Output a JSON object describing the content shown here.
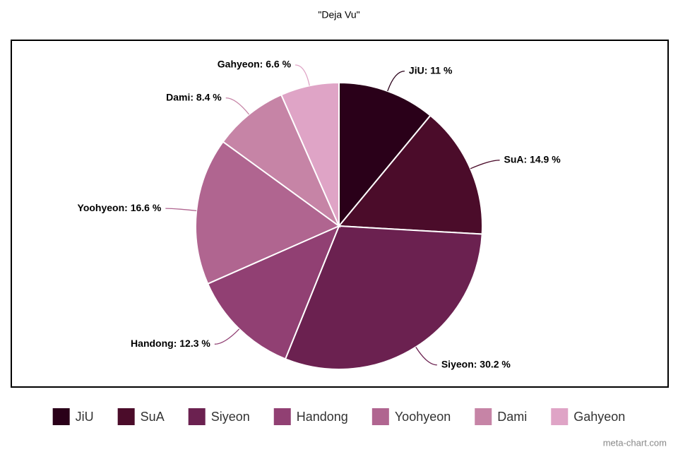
{
  "chart_data": {
    "type": "pie",
    "title": "\"Deja Vu\"",
    "categories": [
      "JiU",
      "SuA",
      "Siyeon",
      "Handong",
      "Yoohyeon",
      "Dami",
      "Gahyeon"
    ],
    "values": [
      11,
      14.9,
      30.2,
      12.3,
      16.6,
      8.4,
      6.6
    ],
    "value_labels": [
      "JiU: 11 %",
      "SuA: 14.9 %",
      "Siyeon: 30.2 %",
      "Handong: 12.3 %",
      "Yoohyeon: 16.6 %",
      "Dami: 8.4 %",
      "Gahyeon: 6.6 %"
    ],
    "colors": [
      "#2a0019",
      "#4b0c2a",
      "#6b2150",
      "#914073",
      "#b06590",
      "#c684a6",
      "#dfa4c6"
    ],
    "legend": "bottom",
    "watermark": "meta-chart.com"
  }
}
